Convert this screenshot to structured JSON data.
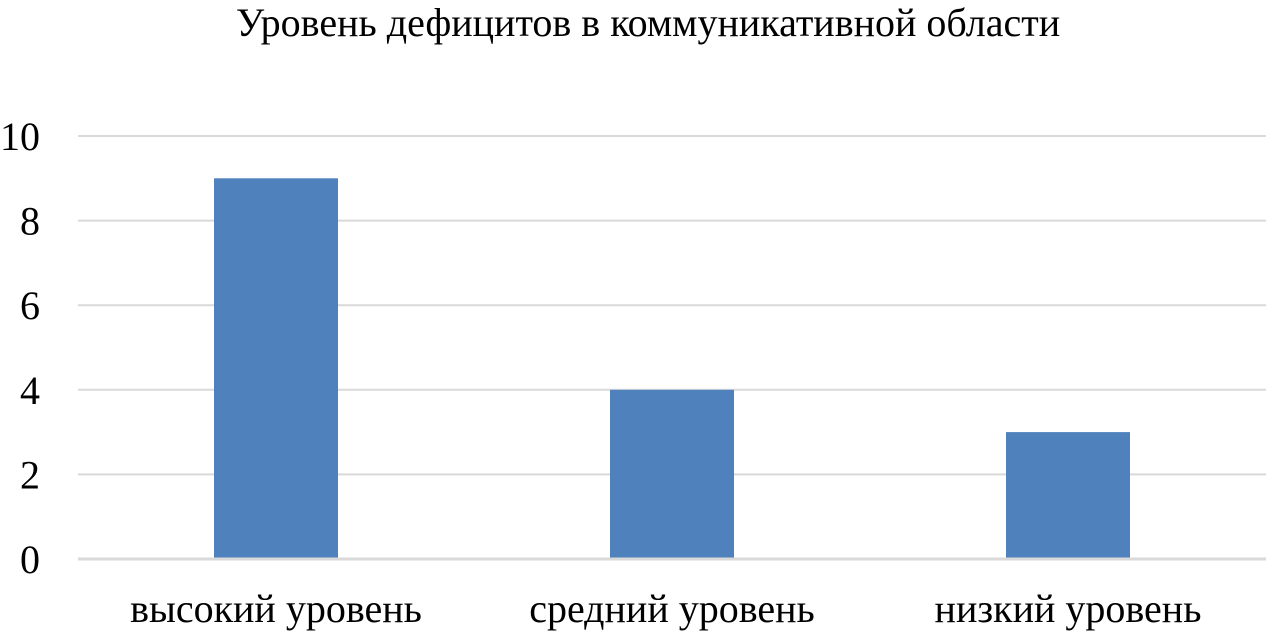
{
  "chart_data": {
    "type": "bar",
    "title": "Уровень дефицитов в коммуникативной области",
    "categories": [
      "высокий уровень",
      "средний уровень",
      "низкий уровень"
    ],
    "values": [
      9,
      4,
      3
    ],
    "xlabel": "",
    "ylabel": "",
    "ylim": [
      0,
      10
    ],
    "yticks": [
      0,
      2,
      4,
      6,
      8,
      10
    ],
    "grid": true,
    "legend": "none",
    "colors": {
      "bar": "#4F81BD",
      "grid": "#D9D9D9",
      "axis": "#D9D9D9"
    }
  }
}
